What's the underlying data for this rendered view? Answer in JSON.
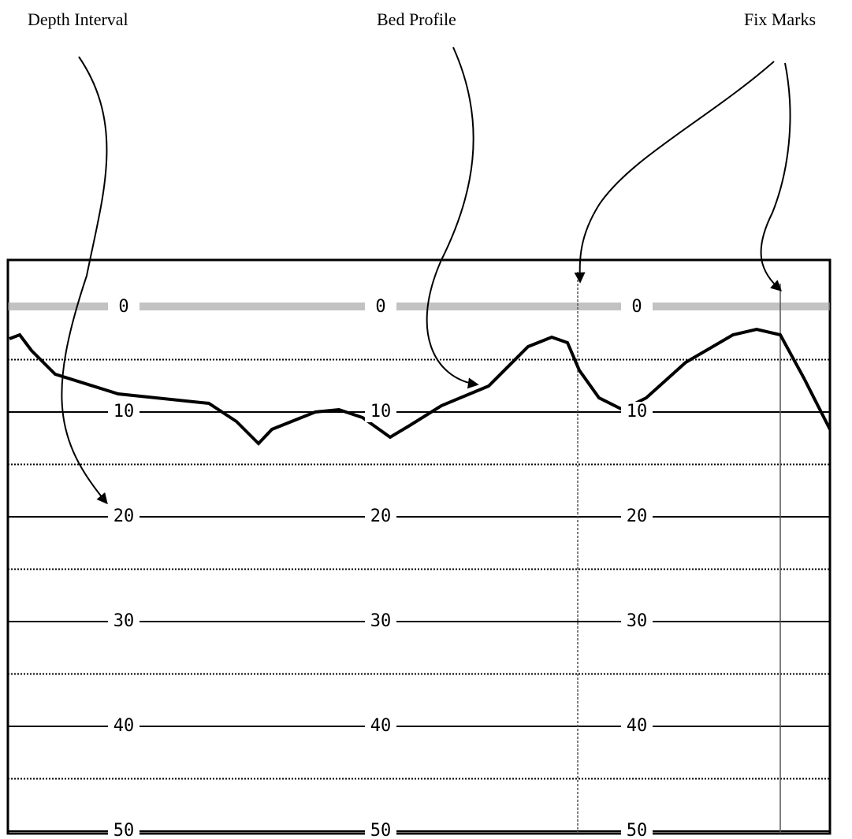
{
  "annotations": [
    "Depth Interval",
    "Bed Profile",
    "Fix Marks"
  ],
  "depth_labels": [
    0,
    10,
    20,
    30,
    40,
    50
  ]
}
